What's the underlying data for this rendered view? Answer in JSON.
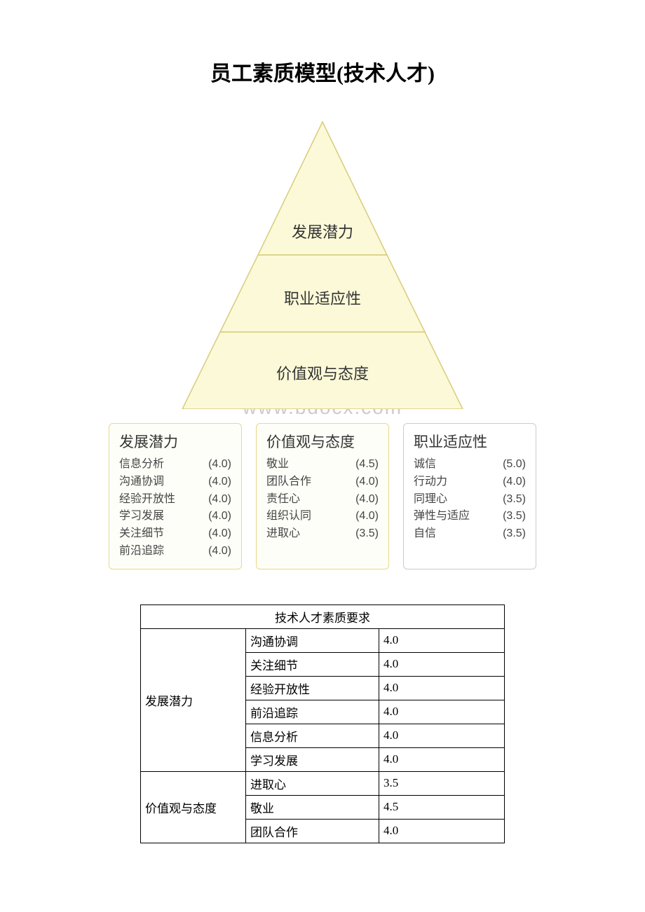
{
  "title": "员工素质模型(技术人才)",
  "watermark": "www.bdocx.com",
  "pyramid": {
    "fill": "#fbf9d8",
    "stroke": "#d8cc7a",
    "levels": [
      {
        "label": "发展潜力"
      },
      {
        "label": "职业适应性"
      },
      {
        "label": "价值观与态度"
      }
    ]
  },
  "cards": [
    {
      "title": "发展潜力",
      "highlight": true,
      "items": [
        {
          "label": "信息分析",
          "score": "(4.0)"
        },
        {
          "label": "沟通协调",
          "score": "(4.0)"
        },
        {
          "label": "经验开放性",
          "score": "(4.0)"
        },
        {
          "label": "学习发展",
          "score": "(4.0)"
        },
        {
          "label": "关注细节",
          "score": "(4.0)"
        },
        {
          "label": "前沿追踪",
          "score": "(4.0)"
        }
      ]
    },
    {
      "title": "价值观与态度",
      "highlight": true,
      "items": [
        {
          "label": "敬业",
          "score": "(4.5)"
        },
        {
          "label": "团队合作",
          "score": "(4.0)"
        },
        {
          "label": "责任心",
          "score": "(4.0)"
        },
        {
          "label": "组织认同",
          "score": "(4.0)"
        },
        {
          "label": "进取心",
          "score": "(3.5)"
        }
      ]
    },
    {
      "title": "职业适应性",
      "highlight": false,
      "items": [
        {
          "label": "诚信",
          "score": "(5.0)"
        },
        {
          "label": "行动力",
          "score": "(4.0)"
        },
        {
          "label": "同理心",
          "score": "(3.5)"
        },
        {
          "label": "弹性与适应",
          "score": "(3.5)"
        },
        {
          "label": "自信",
          "score": "(3.5)"
        }
      ]
    }
  ],
  "table": {
    "header": "技术人才素质要求",
    "groups": [
      {
        "name": "发展潜力",
        "rows": [
          {
            "label": "沟通协调",
            "score": "4.0"
          },
          {
            "label": "关注细节",
            "score": "4.0"
          },
          {
            "label": "经验开放性",
            "score": "4.0"
          },
          {
            "label": "前沿追踪",
            "score": "4.0"
          },
          {
            "label": "信息分析",
            "score": "4.0"
          },
          {
            "label": "学习发展",
            "score": "4.0"
          }
        ]
      },
      {
        "name": "价值观与态度",
        "rows": [
          {
            "label": "进取心",
            "score": "3.5"
          },
          {
            "label": "敬业",
            "score": "4.5"
          },
          {
            "label": "团队合作",
            "score": "4.0"
          }
        ]
      }
    ]
  }
}
